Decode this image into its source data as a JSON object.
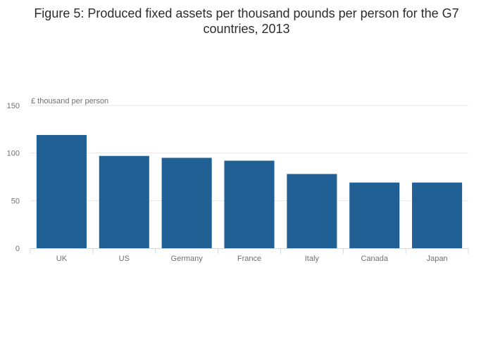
{
  "chart_data": {
    "type": "bar",
    "title_line1": "Figure 5: Produced fixed assets per thousand pounds per person for the G7",
    "title_line2": "countries, 2013",
    "ylabel": "£ thousand per person",
    "ylim": [
      0,
      150
    ],
    "yticks": [
      0,
      50,
      100,
      150
    ],
    "yticks_text": [
      "0",
      "50",
      "100",
      "150"
    ],
    "categories": [
      "UK",
      "US",
      "Germany",
      "France",
      "Italy",
      "Canada",
      "Japan"
    ],
    "values": [
      119,
      97,
      95,
      92,
      78,
      69,
      69
    ],
    "grid": true,
    "bar_color": "#206095",
    "grid_color": "#e6e6e6",
    "axis_color": "#cfd8e3"
  }
}
